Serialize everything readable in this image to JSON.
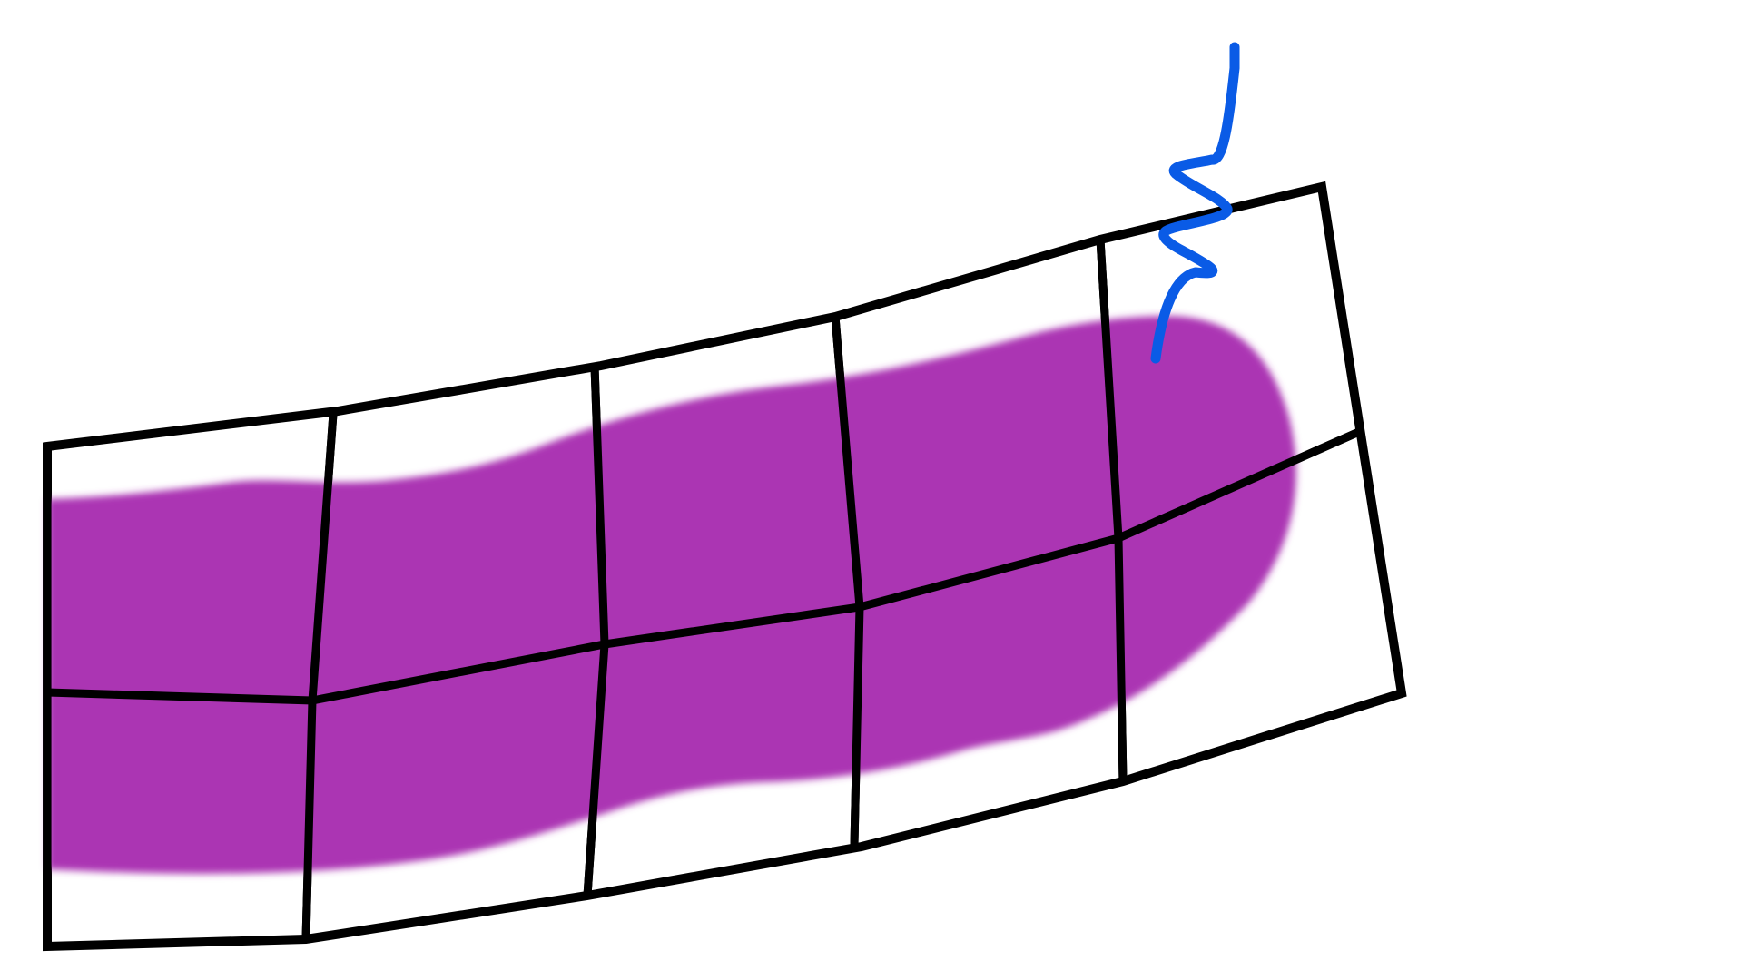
{
  "diagram": {
    "description_visible_text": "",
    "colors": {
      "background": "#ffffff",
      "grid_stroke": "#000000",
      "grid_fill": "#ffffff",
      "band_fill": "#ab34b3",
      "squiggle_stroke": "#0a5be6"
    },
    "grid": {
      "rows": 2,
      "columns": 5
    },
    "icons": {
      "band": "blurred-curved-band",
      "squiggle": "wavy-line-icon"
    }
  }
}
